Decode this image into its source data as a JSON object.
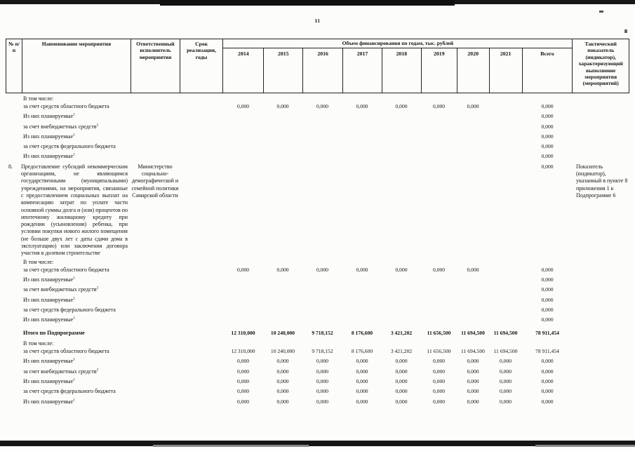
{
  "page": {
    "number": "11"
  },
  "table": {
    "header": {
      "num": "№ п/п",
      "name": "Наименование мероприятия",
      "executor": "Ответственный исполнитель мероприятия",
      "term": "Срок реализации, годы",
      "financing": "Объем финансирования по годам, тыс. рублей",
      "years": [
        "2014",
        "2015",
        "2016",
        "2017",
        "2018",
        "2019",
        "2020",
        "2021",
        "Всего"
      ],
      "tactical": "Тактический показатель (индикатор), характеризующий выполнение мероприятия (мероприятий)"
    },
    "blocks": {
      "blockA": [
        {
          "label": "В том числе:"
        },
        {
          "label": "за счет средств областного бюджета",
          "values": [
            "0,000",
            "0,000",
            "0,000",
            "0,000",
            "0,000",
            "0,000",
            "0,000",
            "",
            "0,000"
          ]
        },
        {
          "label": "Из них планируемые",
          "sup": "1",
          "values": [
            "",
            "",
            "",
            "",
            "",
            "",
            "",
            "",
            "0,000"
          ]
        },
        {
          "label": "за счет внебюджетных средств",
          "sup": "2",
          "values": [
            "",
            "",
            "",
            "",
            "",
            "",
            "",
            "",
            "0,000"
          ]
        },
        {
          "label": "Из них планируемые",
          "sup": "1",
          "values": [
            "",
            "",
            "",
            "",
            "",
            "",
            "",
            "",
            "0,000"
          ]
        },
        {
          "label": "за счет средств федерального бюджета",
          "values": [
            "",
            "",
            "",
            "",
            "",
            "",
            "",
            "",
            "0,000"
          ]
        },
        {
          "label": "Из них планируемые",
          "sup": "1",
          "values": [
            "",
            "",
            "",
            "",
            "",
            "",
            "",
            "",
            "0,000"
          ]
        }
      ],
      "blockB": [
        {
          "label": "В том числе:"
        },
        {
          "label": "за счет средств областного бюджета",
          "values": [
            "0,000",
            "0,000",
            "0,000",
            "0,000",
            "0,000",
            "0,000",
            "0,000",
            "",
            "0,000"
          ]
        },
        {
          "label": "Из них планируемые",
          "sup": "1",
          "values": [
            "",
            "",
            "",
            "",
            "",
            "",
            "",
            "",
            "0,000"
          ]
        },
        {
          "label": "за счет внебюджетных средств",
          "sup": "2",
          "values": [
            "",
            "",
            "",
            "",
            "",
            "",
            "",
            "",
            "0,000"
          ]
        },
        {
          "label": "Из них планируемые",
          "sup": "1",
          "values": [
            "",
            "",
            "",
            "",
            "",
            "",
            "",
            "",
            "0,000"
          ]
        },
        {
          "label": "за счет средств федерального бюджета",
          "values": [
            "",
            "",
            "",
            "",
            "",
            "",
            "",
            "",
            "0,000"
          ]
        },
        {
          "label": "Из них планируемые",
          "sup": "1",
          "values": [
            "",
            "",
            "",
            "",
            "",
            "",
            "",
            "",
            "0,000"
          ]
        }
      ],
      "totals": [
        {
          "label": "Итого по Подпрограмме",
          "bold": true,
          "values": [
            "12 310,000",
            "10 240,000",
            "9 718,152",
            "8 176,600",
            "3 421,202",
            "11 656,500",
            "11 694,500",
            "11 694,500",
            "78 911,454"
          ]
        }
      ],
      "blockC": [
        {
          "label": "В том числе:"
        },
        {
          "label": "за счет средств областного бюджета",
          "values": [
            "12 310,000",
            "10 240,000",
            "9 718,152",
            "8 176,600",
            "3 421,202",
            "11 656,500",
            "11 694,500",
            "11 694,500",
            "78 911,454"
          ]
        },
        {
          "label": "Из них планируемые",
          "sup": "1",
          "values": [
            "0,000",
            "0,000",
            "0,000",
            "0,000",
            "0,000",
            "0,000",
            "0,000",
            "0,000",
            "0,000"
          ]
        },
        {
          "label": "за счет внебюджетных средств",
          "sup": "2",
          "values": [
            "0,000",
            "0,000",
            "0,000",
            "0,000",
            "0,000",
            "0,000",
            "0,000",
            "0,000",
            "0,000"
          ]
        },
        {
          "label": "Из них планируемые",
          "sup": "1",
          "values": [
            "0,000",
            "0,000",
            "0,000",
            "0,000",
            "0,000",
            "0,000",
            "0,000",
            "0,000",
            "0,000"
          ]
        },
        {
          "label": "за счет средств федерального бюджета",
          "values": [
            "0,000",
            "0,000",
            "0,000",
            "0,000",
            "0,000",
            "0,000",
            "0,000",
            "0,000",
            "0,000"
          ]
        },
        {
          "label": "Из них планируемые",
          "sup": "1",
          "values": [
            "0,000",
            "0,000",
            "0,000",
            "0,000",
            "0,000",
            "0,000",
            "0,000",
            "0,000",
            "0,000"
          ]
        }
      ]
    },
    "item8": {
      "num": "8.",
      "name": "Предоставление субсидий некоммерческим организациям, не являющимся государственными (муниципальными) учреждениями, на мероприятия, связанные с предоставлением социальных выплат на компенсацию затрат по уплате части основной суммы долга и (или) процентов по ипотечному жилищному кредиту при рождении (усыновлении) ребенка, при условии покупки нового жилого помещения (не больше двух лет с даты сдачи дома в эксплуатацию) или заключения договора участия в долевом строительстве",
      "executor": "Министерство социально-демографической и семейной политики Самарской области",
      "values": [
        "",
        "",
        "",
        "",
        "",
        "",
        "",
        "",
        "0,000"
      ],
      "tactical": "Показатель (индикатор), указанный в пункте 8 приложения 1 к Подпрограмме 6"
    }
  }
}
